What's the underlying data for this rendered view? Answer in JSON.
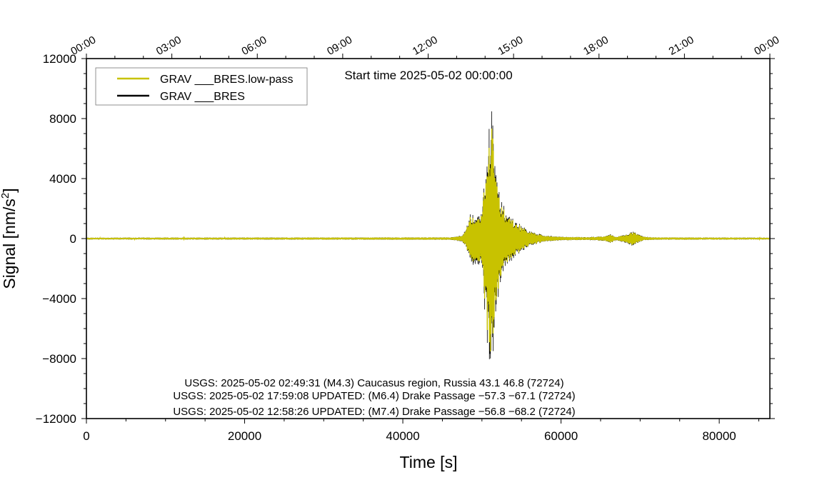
{
  "chart_data": {
    "type": "line",
    "xlabel": "Time [s]",
    "ylabel": "Signal [nm/s²]",
    "ylabel_parts": {
      "main": "Signal [nm/s",
      "sup": "2",
      "tail": "]"
    },
    "xlim": [
      0,
      86400
    ],
    "ylim": [
      -12000,
      12000
    ],
    "xticks": [
      0,
      20000,
      40000,
      60000,
      80000
    ],
    "xtick_labels": [
      "0",
      "20000",
      "40000",
      "60000",
      "80000"
    ],
    "yticks": [
      12000,
      8000,
      4000,
      0,
      -4000,
      -8000,
      -12000
    ],
    "ytick_labels": [
      "12000",
      "8000",
      "4000",
      "0",
      "−4000",
      "−8000",
      "−12000"
    ],
    "top_axis_ticks": [
      0,
      10800,
      21600,
      32400,
      43200,
      54000,
      64800,
      75600,
      86400
    ],
    "top_axis_labels": [
      "00:00",
      "03:00",
      "06:00",
      "09:00",
      "12:00",
      "15:00",
      "18:00",
      "21:00",
      "00:00"
    ],
    "start_time": "Start time 2025-05-02 00:00:00",
    "legend_position": "top-left",
    "series": [
      {
        "name": "GRAV ___BRES.low-pass",
        "color": "#c8c200",
        "role": "low-pass"
      },
      {
        "name": "GRAV ___BRES",
        "color": "#000000",
        "role": "raw"
      }
    ],
    "envelope": {
      "x": [
        0,
        46000,
        47400,
        48000,
        48500,
        49000,
        49500,
        50000,
        50500,
        50900,
        51300,
        51800,
        52300,
        53000,
        54000,
        55000,
        56000,
        57000,
        58000,
        60000,
        63000,
        65500,
        66200,
        67000,
        68300,
        69000,
        69700,
        70500,
        72000,
        86400
      ],
      "upper": [
        60,
        80,
        200,
        600,
        1800,
        1500,
        1600,
        1700,
        5200,
        7600,
        9600,
        4300,
        2900,
        1900,
        1300,
        900,
        500,
        350,
        200,
        120,
        100,
        150,
        300,
        120,
        300,
        500,
        300,
        120,
        80,
        60
      ],
      "lower": [
        -60,
        -80,
        -200,
        -600,
        -1500,
        -1900,
        -1700,
        -2000,
        -6200,
        -8600,
        -8400,
        -4600,
        -3400,
        -2100,
        -1300,
        -900,
        -500,
        -350,
        -200,
        -120,
        -100,
        -150,
        -300,
        -120,
        -300,
        -500,
        -300,
        -120,
        -80,
        -60
      ]
    },
    "grid": false
  },
  "annotations": [
    "USGS: 2025-05-02 02:49:31 (M4.3) Caucasus region, Russia 43.1 46.8 (72724)",
    "USGS: 2025-05-02 17:59:08 UPDATED: (M6.4) Drake Passage −57.3 −67.1 (72724)",
    "USGS: 2025-05-02 12:58:26 UPDATED: (M7.4) Drake Passage −56.8 −68.2 (72724)"
  ]
}
